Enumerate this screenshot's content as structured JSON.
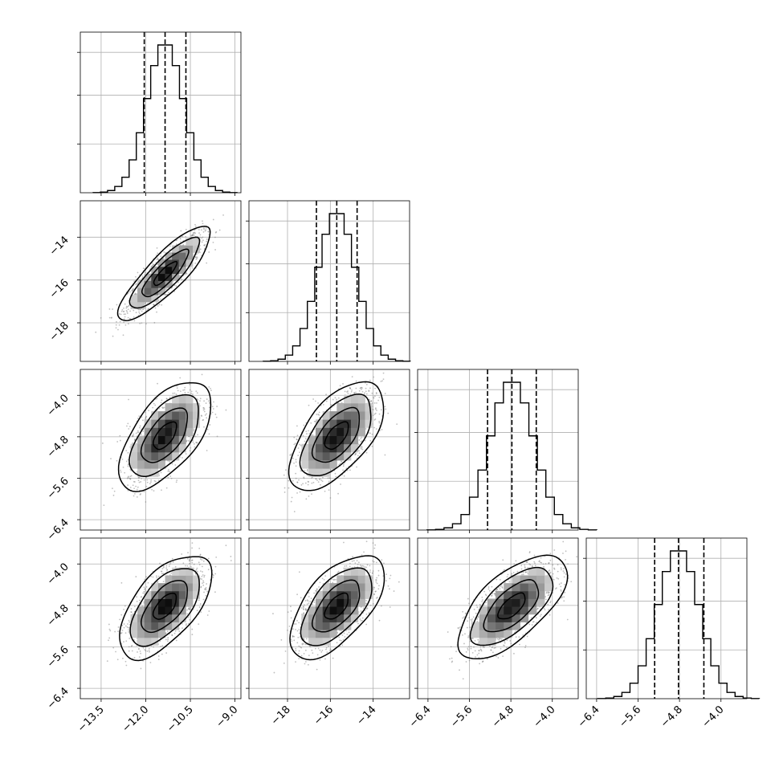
{
  "chart_data": {
    "type": "corner",
    "grid": true,
    "params": [
      {
        "range": [
          -14.2,
          -8.8
        ],
        "ticks": [
          -13.5,
          -12.0,
          -10.5,
          -9.0
        ],
        "tick_labels": [
          "−13.5",
          "−12.0",
          "−10.5",
          "−9.0"
        ],
        "mean": -11.35,
        "sd": 0.62,
        "quantiles": [
          -12.05,
          -11.35,
          -10.65
        ]
      },
      {
        "range": [
          -19.8,
          -12.3
        ],
        "ticks": [
          -18,
          -16,
          -14
        ],
        "tick_labels": [
          "−18",
          "−16",
          "−14"
        ],
        "mean": -15.7,
        "sd": 0.88,
        "quantiles": [
          -16.65,
          -15.7,
          -14.75
        ]
      },
      {
        "range": [
          -6.6,
          -3.5
        ],
        "ticks": [
          -6.4,
          -5.6,
          -4.8,
          -4.0
        ],
        "tick_labels": [
          "−6.4",
          "−5.6",
          "−4.8",
          "−4.0"
        ],
        "mean": -4.78,
        "sd": 0.42,
        "quantiles": [
          -5.25,
          -4.78,
          -4.31
        ]
      },
      {
        "range": [
          -6.6,
          -3.5
        ],
        "ticks": [
          -6.4,
          -5.6,
          -4.8,
          -4.0
        ],
        "tick_labels": [
          "−6.4",
          "−5.6",
          "−4.8",
          "−4.0"
        ],
        "mean": -4.82,
        "sd": 0.4,
        "quantiles": [
          -5.28,
          -4.82,
          -4.33
        ]
      }
    ],
    "correlations": {
      "1-0": 0.85,
      "2-0": 0.6,
      "2-1": 0.6,
      "3-0": 0.6,
      "3-1": 0.6,
      "3-2": 0.65
    },
    "contour_levels_sigma": [
      0.5,
      1.0,
      1.5,
      2.0
    ],
    "hist_bins": 20,
    "colors": {
      "line": "#000000",
      "grid": "#b0b0b0",
      "scatter": "#7f7f7f"
    }
  }
}
